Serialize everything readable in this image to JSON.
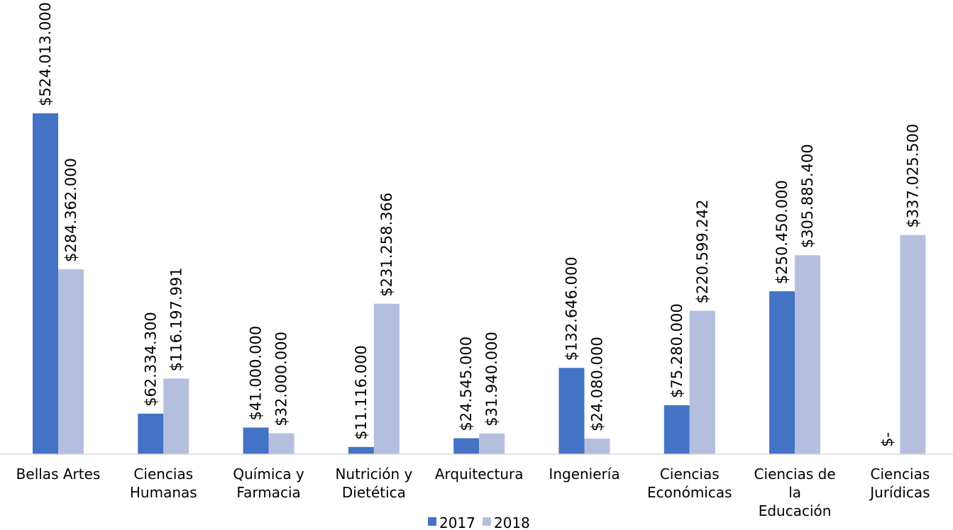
{
  "chart_data": {
    "type": "bar",
    "categories": [
      [
        "Bellas Artes"
      ],
      [
        "Ciencias",
        "Humanas"
      ],
      [
        "Química y",
        "Farmacia"
      ],
      [
        "Nutrición y",
        "Dietética"
      ],
      [
        "Arquitectura"
      ],
      [
        "Ingeniería"
      ],
      [
        "Ciencias",
        "Económicas"
      ],
      [
        "Ciencias de",
        "la",
        "Educación"
      ],
      [
        "Ciencias",
        "Jurídicas"
      ]
    ],
    "series": [
      {
        "name": "2017",
        "color": "#4472c4",
        "values": [
          524013000,
          62334300,
          41000000,
          11116000,
          24545000,
          132646000,
          75280000,
          250450000,
          0
        ],
        "labels": [
          "$524.013.000",
          "$62.334.300",
          "$41.000.000",
          "$11.116.000",
          "$24.545.000",
          "$132.646.000",
          "$75.280.000",
          "$250.450.000",
          "$-"
        ]
      },
      {
        "name": "2018",
        "color": "#b4bfe0",
        "values": [
          284362000,
          116197991,
          32000000,
          231258366,
          31940000,
          24080000,
          220599242,
          305885400,
          337025500
        ],
        "labels": [
          "$284.362.000",
          "$116.197.991",
          "$32.000.000",
          "$231.258.366",
          "$31.940.000",
          "$24.080.000",
          "$220.599.242",
          "$305.885.400",
          "$337.025.500"
        ]
      }
    ],
    "title": "",
    "xlabel": "",
    "ylabel": "",
    "ylim": [
      0,
      524013000
    ],
    "grid": false,
    "legend_position": "bottom"
  }
}
